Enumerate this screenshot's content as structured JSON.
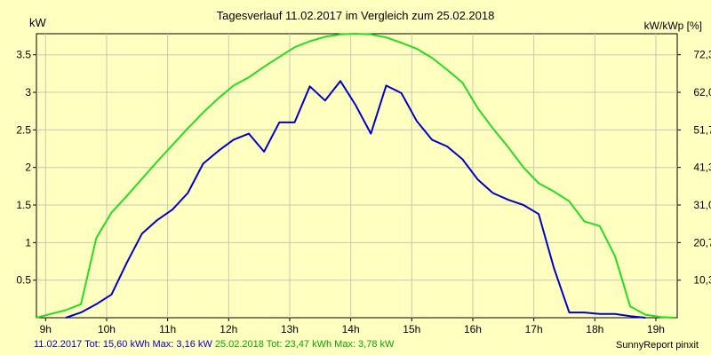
{
  "header": {
    "title": "Tagesverlauf 11.02.2017 im Vergleich zum 25.02.2018",
    "unit_left": "kW",
    "unit_right": "kW/kWp [%]"
  },
  "footer": {
    "series1": "11.02.2017 Tot: 15,60 kWh Max: 3,16 kW",
    "series2": "25.02.2018 Tot: 23,47 kWh Max: 3,78 kW",
    "brand": "SunnyReport pinxit"
  },
  "colors": {
    "background": "#ffffc0",
    "series1": "#0000cc",
    "series2": "#22dd22",
    "grid": "#c8c8b4"
  },
  "chart_data": {
    "type": "line",
    "title": "Tagesverlauf 11.02.2017 im Vergleich zum 25.02.2018",
    "xlabel": "",
    "ylabel": "kW",
    "y2label": "kW/kWp [%]",
    "xlim": [
      8.85,
      19.35
    ],
    "ylim": [
      0,
      3.78
    ],
    "x_ticks": [
      {
        "value": 9,
        "label": "9h"
      },
      {
        "value": 10,
        "label": "10h"
      },
      {
        "value": 11,
        "label": "11h"
      },
      {
        "value": 12,
        "label": "12h"
      },
      {
        "value": 13,
        "label": "13h"
      },
      {
        "value": 14,
        "label": "14h"
      },
      {
        "value": 15,
        "label": "15h"
      },
      {
        "value": 16,
        "label": "16h"
      },
      {
        "value": 17,
        "label": "17h"
      },
      {
        "value": 18,
        "label": "18h"
      },
      {
        "value": 19,
        "label": "19h"
      }
    ],
    "y_ticks": [
      {
        "value": 0.5,
        "label": "0.5"
      },
      {
        "value": 1,
        "label": "1"
      },
      {
        "value": 1.5,
        "label": "1.5"
      },
      {
        "value": 2,
        "label": "2"
      },
      {
        "value": 2.5,
        "label": "2.5"
      },
      {
        "value": 3,
        "label": "3"
      },
      {
        "value": 3.5,
        "label": "3.5"
      }
    ],
    "y2_ticks": [
      {
        "value": 0.5,
        "label": "10,3"
      },
      {
        "value": 1,
        "label": "20,7"
      },
      {
        "value": 1.5,
        "label": "31,0"
      },
      {
        "value": 2,
        "label": "41,3"
      },
      {
        "value": 2.5,
        "label": "51,7"
      },
      {
        "value": 3,
        "label": "62,0"
      },
      {
        "value": 3.5,
        "label": "72,3"
      }
    ],
    "grid": true,
    "series": [
      {
        "name": "11.02.2017",
        "color": "#0000cc",
        "x": [
          9.33,
          9.58,
          9.83,
          10.08,
          10.33,
          10.58,
          10.83,
          11.08,
          11.33,
          11.58,
          11.83,
          12.08,
          12.33,
          12.58,
          12.83,
          13.08,
          13.33,
          13.58,
          13.83,
          14.08,
          14.33,
          14.58,
          14.83,
          15.08,
          15.33,
          15.58,
          15.83,
          16.08,
          16.33,
          16.58,
          16.83,
          17.08,
          17.33,
          17.58,
          17.83,
          18.08,
          18.33,
          18.58,
          18.83
        ],
        "y": [
          0.0,
          0.07,
          0.18,
          0.31,
          0.73,
          1.12,
          1.3,
          1.44,
          1.66,
          2.05,
          2.22,
          2.37,
          2.45,
          2.21,
          2.6,
          2.6,
          3.08,
          2.89,
          3.15,
          2.83,
          2.45,
          3.09,
          2.99,
          2.62,
          2.37,
          2.28,
          2.11,
          1.84,
          1.66,
          1.57,
          1.5,
          1.38,
          0.66,
          0.07,
          0.07,
          0.05,
          0.05,
          0.02,
          0.0
        ]
      },
      {
        "name": "25.02.2018",
        "color": "#22dd22",
        "x": [
          8.85,
          9.08,
          9.33,
          9.58,
          9.83,
          10.08,
          10.33,
          10.58,
          10.83,
          11.08,
          11.33,
          11.58,
          11.83,
          12.08,
          12.33,
          12.58,
          12.83,
          13.08,
          13.33,
          13.58,
          13.83,
          14.08,
          14.33,
          14.58,
          14.83,
          15.08,
          15.33,
          15.58,
          15.83,
          16.08,
          16.33,
          16.58,
          16.83,
          17.08,
          17.33,
          17.58,
          17.83,
          18.08,
          18.33,
          18.58,
          18.83,
          19.08,
          19.33
        ],
        "y": [
          0.0,
          0.05,
          0.1,
          0.18,
          1.06,
          1.4,
          1.62,
          1.85,
          2.08,
          2.3,
          2.52,
          2.73,
          2.92,
          3.09,
          3.2,
          3.34,
          3.47,
          3.6,
          3.68,
          3.74,
          3.77,
          3.78,
          3.77,
          3.73,
          3.66,
          3.58,
          3.46,
          3.3,
          3.13,
          2.79,
          2.52,
          2.27,
          2.0,
          1.79,
          1.68,
          1.55,
          1.28,
          1.22,
          0.82,
          0.15,
          0.04,
          0.01,
          0.0
        ]
      }
    ]
  }
}
